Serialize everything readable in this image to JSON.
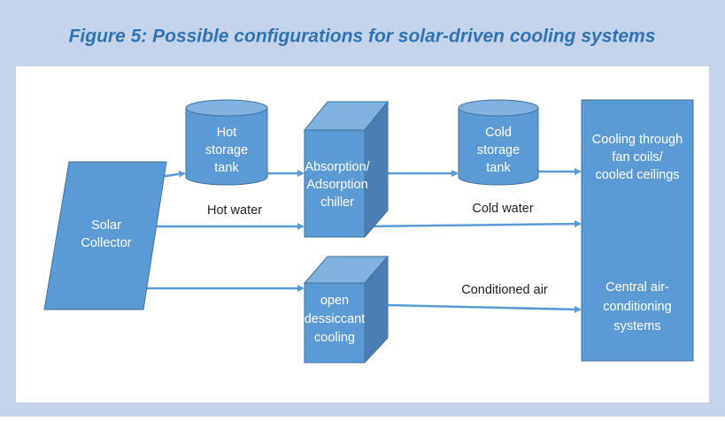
{
  "title": "Figure 5: Possible configurations for solar-driven cooling systems",
  "nodes": [
    {
      "lines": [
        "Solar",
        "Collector"
      ]
    },
    {
      "lines": [
        "Hot",
        "storage",
        "tank"
      ]
    },
    {
      "lines": [
        "Absorption/",
        "Adsorption",
        "chiller"
      ]
    },
    {
      "lines": [
        "Cold",
        "storage",
        "tank"
      ]
    },
    {
      "lines": [
        "Cooling through",
        "fan coils/",
        "cooled ceilings"
      ]
    },
    {
      "lines": [
        "Central air-",
        "conditioning",
        "systems"
      ]
    },
    {
      "lines": [
        "open",
        "dessiccant",
        "cooling"
      ]
    }
  ],
  "edge_labels": [
    "Hot water",
    "Cold water",
    "Conditioned air"
  ]
}
